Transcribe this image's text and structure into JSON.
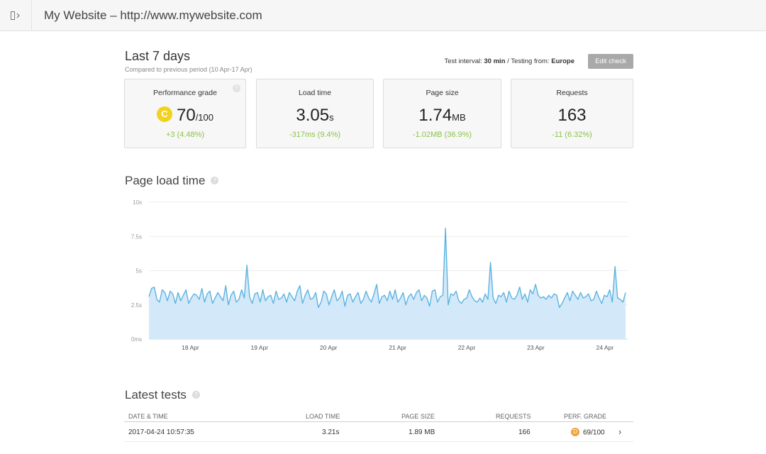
{
  "header": {
    "title": "My Website – http://www.mywebsite.com",
    "toggle_icon": "sidebar-toggle-icon"
  },
  "period": {
    "title": "Last 7 days",
    "subtitle": "Compared to previous period (10 Apr-17 Apr)",
    "test_interval_label": "Test interval:",
    "test_interval_value": "30 min",
    "testing_from_label": "/ Testing from:",
    "testing_from_value": "Europe",
    "edit_button": "Edit check"
  },
  "metrics": [
    {
      "label": "Performance grade",
      "grade": "C",
      "value": "70",
      "unit": "/100",
      "change": "+3 (4.48%)",
      "grade_color": "#f2d21e"
    },
    {
      "label": "Load time",
      "value": "3.05",
      "unit": "s",
      "change": "-317ms (9.4%)"
    },
    {
      "label": "Page size",
      "value": "1.74",
      "unit": "MB",
      "change": "-1.02MB (36.9%)"
    },
    {
      "label": "Requests",
      "value": "163",
      "unit": "",
      "change": "-11 (6.32%)"
    }
  ],
  "colors": {
    "accent_green": "#8bc34a",
    "chart_line": "#5db3e0",
    "chart_fill": "#d3e9f9"
  },
  "load_section": {
    "title": "Page load time"
  },
  "chart_data": {
    "type": "area",
    "title": "",
    "xlabel": "",
    "ylabel": "",
    "y_ticks": [
      "0ms",
      "2.5s",
      "5s",
      "7.5s",
      "10s"
    ],
    "ylim": [
      0,
      10
    ],
    "x_ticks": [
      "18 Apr",
      "19 Apr",
      "20 Apr",
      "21 Apr",
      "22 Apr",
      "23 Apr",
      "24 Apr"
    ],
    "x_tick_positions": [
      0.6,
      1.6,
      2.6,
      3.6,
      4.6,
      5.6,
      6.6
    ],
    "xlim": [
      0,
      6.9
    ],
    "grid": true,
    "series": [
      {
        "values": [
          3.1,
          3.7,
          3.8,
          2.9,
          2.7,
          3.6,
          3.4,
          2.8,
          3.5,
          3.3,
          2.6,
          3.4,
          2.8,
          3.2,
          3.6,
          2.6,
          3.0,
          3.3,
          3.2,
          2.9,
          3.7,
          2.7,
          3.3,
          3.5,
          2.6,
          3.0,
          3.4,
          3.1,
          2.8,
          3.9,
          2.5,
          3.2,
          3.5,
          2.7,
          2.9,
          3.6,
          3.0,
          5.4,
          3.1,
          2.6,
          3.3,
          3.4,
          2.7,
          3.6,
          2.8,
          3.1,
          3.2,
          2.6,
          3.5,
          2.9,
          3.0,
          3.3,
          2.7,
          3.4,
          3.1,
          2.8,
          3.5,
          3.9,
          2.6,
          3.2,
          3.6,
          2.9,
          3.0,
          3.4,
          2.3,
          2.7,
          3.5,
          3.3,
          2.5,
          3.1,
          3.6,
          2.8,
          3.0,
          3.5,
          2.4,
          3.2,
          3.3,
          2.7,
          3.1,
          3.4,
          2.6,
          2.9,
          3.5,
          3.0,
          2.7,
          3.3,
          4.0,
          2.6,
          3.1,
          3.2,
          2.8,
          3.5,
          2.9,
          3.6,
          2.7,
          3.0,
          3.4,
          2.5,
          3.1,
          3.3,
          2.9,
          3.4,
          3.6,
          2.8,
          3.2,
          3.0,
          2.4,
          3.5,
          3.6,
          2.7,
          3.1,
          3.2,
          8.1,
          2.5,
          3.3,
          3.2,
          3.5,
          2.8,
          2.6,
          2.9,
          3.0,
          3.6,
          3.1,
          2.8,
          2.7,
          3.0,
          2.7,
          3.3,
          2.9,
          5.6,
          3.0,
          2.6,
          3.2,
          3.1,
          3.4,
          2.7,
          3.5,
          3.0,
          2.9,
          3.2,
          3.8,
          2.9,
          3.3,
          2.7,
          3.6,
          3.3,
          4.0,
          3.2,
          3.0,
          3.1,
          2.9,
          3.2,
          3.0,
          3.3,
          3.2,
          2.3,
          2.6,
          3.0,
          3.4,
          2.8,
          3.5,
          3.2,
          2.9,
          3.4,
          3.0,
          3.1,
          3.3,
          2.8,
          2.9,
          3.5,
          3.0,
          2.6,
          3.2,
          3.1,
          3.6,
          2.7,
          5.3,
          3.0,
          2.9,
          2.7,
          3.4
        ]
      }
    ]
  },
  "tests_section": {
    "title": "Latest tests"
  },
  "table": {
    "columns": [
      "DATE & TIME",
      "LOAD TIME",
      "PAGE SIZE",
      "REQUESTS",
      "PERF. GRADE"
    ],
    "rows": [
      {
        "datetime": "2017-04-24 10:57:35",
        "load_time": "3.21s",
        "page_size": "1.89 MB",
        "requests": "166",
        "grade": "D",
        "grade_value": "69/100",
        "grade_color": "#f0a23b"
      }
    ]
  }
}
